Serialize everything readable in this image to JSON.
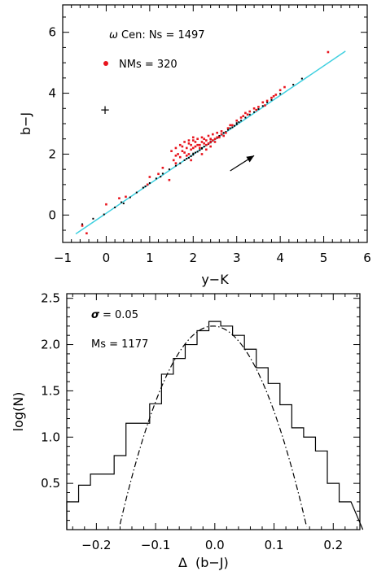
{
  "chart_data": [
    {
      "type": "scatter",
      "xlabel": "y−K",
      "ylabel": "b−J",
      "xlim": [
        -1,
        6
      ],
      "ylim": [
        -0.9,
        6.9
      ],
      "xticks": [
        "−1",
        "0",
        "1",
        "2",
        "3",
        "4",
        "5",
        "6"
      ],
      "yticks": [
        "0",
        "2",
        "4",
        "6"
      ],
      "annotations": {
        "omega_symbol": "ω",
        "ns_text": "Cen: Ns = 1497",
        "nms_text": "NMs = 320",
        "error_bar_marker": "+",
        "arrow": {
          "from": [
            2.85,
            1.45
          ],
          "to": [
            3.4,
            1.95
          ]
        }
      },
      "colors": {
        "members": "#000000",
        "nonmembers": "#e8141d",
        "fit_line": "#40d0e0",
        "arrow": "#000000"
      },
      "fit_line": {
        "x": [
          -0.7,
          5.5
        ],
        "y": [
          -0.62,
          5.38
        ]
      },
      "series": [
        {
          "role": "members",
          "points": [
            [
              -0.55,
              -0.3
            ],
            [
              -0.3,
              -0.12
            ],
            [
              -0.05,
              0.02
            ],
            [
              0.2,
              0.25
            ],
            [
              0.35,
              0.42
            ],
            [
              0.55,
              0.58
            ],
            [
              0.7,
              0.74
            ],
            [
              0.85,
              0.9
            ],
            [
              1.0,
              1.05
            ],
            [
              1.15,
              1.2
            ],
            [
              1.3,
              1.36
            ],
            [
              1.45,
              1.5
            ],
            [
              1.6,
              1.62
            ],
            [
              1.7,
              1.7
            ],
            [
              1.8,
              1.8
            ],
            [
              1.9,
              1.88
            ],
            [
              2.0,
              1.98
            ],
            [
              2.1,
              2.08
            ],
            [
              2.2,
              2.2
            ],
            [
              2.3,
              2.3
            ],
            [
              2.4,
              2.38
            ],
            [
              2.5,
              2.5
            ],
            [
              2.6,
              2.6
            ],
            [
              2.7,
              2.7
            ],
            [
              2.8,
              2.8
            ],
            [
              2.9,
              2.88
            ],
            [
              3.0,
              2.98
            ],
            [
              3.1,
              3.1
            ],
            [
              3.2,
              3.2
            ],
            [
              3.4,
              3.38
            ],
            [
              3.6,
              3.58
            ],
            [
              3.8,
              3.78
            ],
            [
              4.0,
              3.98
            ],
            [
              4.3,
              4.28
            ],
            [
              4.5,
              4.48
            ],
            [
              1.85,
              1.85
            ],
            [
              1.95,
              1.93
            ],
            [
              2.05,
              2.05
            ],
            [
              2.15,
              2.13
            ],
            [
              2.25,
              2.25
            ],
            [
              2.35,
              2.33
            ],
            [
              2.45,
              2.45
            ],
            [
              2.55,
              2.53
            ],
            [
              2.65,
              2.65
            ],
            [
              2.75,
              2.73
            ],
            [
              2.85,
              2.85
            ],
            [
              2.95,
              2.93
            ],
            [
              3.05,
              3.05
            ],
            [
              2.0,
              2.02
            ],
            [
              2.2,
              2.18
            ],
            [
              2.4,
              2.42
            ],
            [
              2.6,
              2.58
            ],
            [
              2.8,
              2.82
            ],
            [
              3.0,
              3.02
            ],
            [
              0.4,
              0.38
            ],
            [
              0.9,
              0.94
            ],
            [
              1.25,
              1.26
            ],
            [
              3.3,
              3.3
            ],
            [
              3.5,
              3.48
            ],
            [
              3.7,
              3.7
            ]
          ]
        },
        {
          "role": "nonmembers",
          "points": [
            [
              -0.55,
              -0.35
            ],
            [
              -0.45,
              -0.6
            ],
            [
              0.0,
              0.35
            ],
            [
              0.3,
              0.55
            ],
            [
              0.45,
              0.6
            ],
            [
              0.95,
              1.0
            ],
            [
              1.0,
              1.25
            ],
            [
              1.2,
              1.35
            ],
            [
              1.5,
              2.1
            ],
            [
              1.6,
              2.2
            ],
            [
              1.7,
              2.3
            ],
            [
              1.75,
              2.1
            ],
            [
              1.8,
              2.4
            ],
            [
              1.85,
              2.2
            ],
            [
              1.9,
              2.35
            ],
            [
              1.95,
              2.15
            ],
            [
              2.0,
              2.45
            ],
            [
              2.05,
              2.25
            ],
            [
              2.1,
              2.5
            ],
            [
              2.15,
              2.3
            ],
            [
              2.2,
              2.55
            ],
            [
              2.25,
              2.35
            ],
            [
              2.3,
              2.45
            ],
            [
              2.35,
              2.6
            ],
            [
              2.4,
              2.4
            ],
            [
              2.45,
              2.65
            ],
            [
              2.5,
              2.5
            ],
            [
              2.55,
              2.7
            ],
            [
              2.6,
              2.55
            ],
            [
              2.65,
              2.75
            ],
            [
              2.7,
              2.6
            ],
            [
              1.65,
              2.0
            ],
            [
              1.7,
              1.9
            ],
            [
              1.8,
              2.05
            ],
            [
              1.9,
              2.0
            ],
            [
              2.0,
              2.2
            ],
            [
              2.1,
              2.3
            ],
            [
              2.2,
              2.4
            ],
            [
              2.3,
              2.3
            ],
            [
              2.4,
              2.5
            ],
            [
              2.5,
              2.4
            ],
            [
              1.55,
              1.8
            ],
            [
              1.6,
              1.95
            ],
            [
              1.75,
              2.25
            ],
            [
              1.85,
              1.95
            ],
            [
              1.95,
              2.3
            ],
            [
              2.05,
              2.4
            ],
            [
              2.15,
              2.2
            ],
            [
              2.25,
              2.5
            ],
            [
              2.35,
              2.35
            ],
            [
              2.45,
              2.45
            ],
            [
              2.55,
              2.55
            ],
            [
              2.65,
              2.65
            ],
            [
              2.75,
              2.7
            ],
            [
              2.8,
              2.85
            ],
            [
              2.9,
              2.95
            ],
            [
              3.0,
              3.1
            ],
            [
              3.1,
              3.2
            ],
            [
              3.2,
              3.35
            ],
            [
              3.3,
              3.4
            ],
            [
              3.4,
              3.5
            ],
            [
              3.5,
              3.55
            ],
            [
              3.6,
              3.7
            ],
            [
              3.7,
              3.75
            ],
            [
              3.8,
              3.85
            ],
            [
              3.9,
              3.95
            ],
            [
              4.0,
              4.1
            ],
            [
              4.1,
              4.2
            ],
            [
              3.25,
              3.3
            ],
            [
              3.45,
              3.45
            ],
            [
              3.65,
              3.6
            ],
            [
              3.85,
              3.9
            ],
            [
              2.2,
              2.0
            ],
            [
              2.3,
              2.15
            ],
            [
              2.4,
              2.25
            ],
            [
              1.9,
              2.45
            ],
            [
              2.0,
              2.55
            ],
            [
              5.1,
              5.35
            ],
            [
              1.45,
              1.15
            ],
            [
              1.3,
              1.55
            ],
            [
              2.85,
              2.95
            ],
            [
              3.15,
              3.25
            ],
            [
              1.6,
              1.7
            ],
            [
              1.95,
              1.8
            ]
          ]
        }
      ]
    },
    {
      "type": "line",
      "xlabel_symbol": "Δ",
      "xlabel": "(b−J)",
      "ylabel": "log(N)",
      "xlim": [
        -0.25,
        0.245
      ],
      "ylim": [
        0.0,
        2.55
      ],
      "xticks": [
        "−0.2",
        "−0.1",
        "0.0",
        "0.1",
        "0.2"
      ],
      "yticks": [
        "0.5",
        "1.0",
        "1.5",
        "2.0",
        "2.5"
      ],
      "annotations": {
        "sigma_symbol": "σ",
        "sigma_text": "= 0.05",
        "ms_text": "Ms = 1177"
      },
      "histogram": {
        "bin_edges": [
          -0.25,
          -0.23,
          -0.21,
          -0.19,
          -0.17,
          -0.15,
          -0.13,
          -0.11,
          -0.09,
          -0.07,
          -0.05,
          -0.03,
          -0.01,
          0.01,
          0.03,
          0.05,
          0.07,
          0.09,
          0.11,
          0.13,
          0.15,
          0.17,
          0.19,
          0.21,
          0.23
        ],
        "log_counts": [
          0.3,
          0.48,
          0.6,
          0.6,
          0.8,
          1.15,
          1.15,
          1.36,
          1.68,
          1.85,
          2.0,
          2.15,
          2.25,
          2.2,
          2.1,
          1.95,
          1.75,
          1.58,
          1.35,
          1.1,
          1.0,
          0.85,
          0.5,
          0.3
        ]
      },
      "gaussian": {
        "sigma": 0.05,
        "peak": 2.2,
        "center": -0.003
      }
    }
  ]
}
